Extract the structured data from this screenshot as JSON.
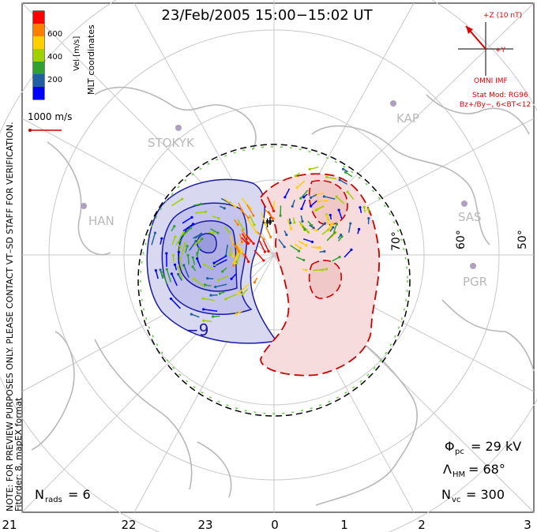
{
  "header": {
    "title": "23/Feb/2005 15:00−15:02 UT"
  },
  "colorbar": {
    "label": "Vel [m/s]",
    "ticks": [
      "600",
      "400",
      "200"
    ],
    "colors": [
      "#ff0000",
      "#ff8000",
      "#ffd000",
      "#a0d000",
      "#30a030",
      "#2060a0",
      "#0000ff"
    ]
  },
  "coordinates_label": "MLT coordinates",
  "vector_scale": {
    "label": "1000 m/s"
  },
  "notes": {
    "line1": "NOTE: FOR PREVIEW PURPOSES ONLY. PLEASE CONTACT VT–SD STAFF FOR VERIFICATION.",
    "line2": "FitOrder: 8, mapEX format"
  },
  "imf": {
    "z_label": "+Z (10 nT)",
    "y_label": "+Y",
    "source": "OMNI IMF",
    "model": "Stat Mod: RG96",
    "condition": "Bz+/By−, 6<BT<12",
    "color": "#dd0000"
  },
  "stations": [
    {
      "name": "STOKYK"
    },
    {
      "name": "KAP"
    },
    {
      "name": "HAN"
    },
    {
      "name": "SAS"
    },
    {
      "name": "PGR"
    }
  ],
  "latitude_labels": [
    "70°",
    "60°",
    "50°"
  ],
  "mlt_labels": [
    "21",
    "22",
    "23",
    "0",
    "1",
    "2",
    "3"
  ],
  "contour_labels": {
    "negative": "−9",
    "positive": "+"
  },
  "stats": {
    "phi_pc_symbol": "Φ",
    "phi_pc_sub": "pc",
    "phi_pc_value": "= 29 kV",
    "lambda_symbol": "Λ",
    "lambda_sub": "HM",
    "lambda_value": "= 68°",
    "nvc_symbol": "N",
    "nvc_sub": "vc",
    "nvc_value": "= 300",
    "nrads_symbol": "N",
    "nrads_sub": "rads",
    "nrads_value": "= 6"
  },
  "colors": {
    "negative_cell": "#1a1aa8",
    "positive_cell": "#cc0000",
    "boundary_green": "#66cc44",
    "grid": "#c8c8c8",
    "coast": "#b8b8b8"
  }
}
